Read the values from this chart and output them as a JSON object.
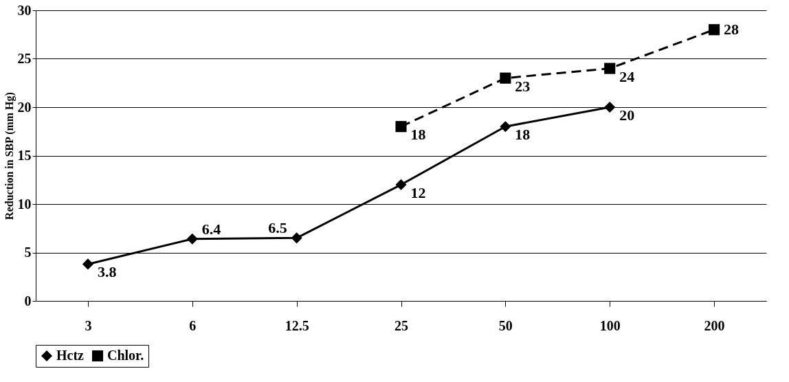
{
  "chart_data": {
    "type": "line",
    "ylabel": "Reduction in SBP (mm Hg)",
    "categories": [
      "3",
      "6",
      "12.5",
      "25",
      "50",
      "100",
      "200"
    ],
    "series": [
      {
        "name": "Hctz",
        "color": "#000000",
        "marker": "diamond",
        "line_style": "solid",
        "values": [
          3.8,
          6.4,
          6.5,
          12,
          18,
          20,
          null
        ]
      },
      {
        "name": "Chlor.",
        "color": "#000000",
        "marker": "square",
        "line_style": "dashed",
        "values": [
          null,
          null,
          null,
          18,
          23,
          24,
          28
        ]
      }
    ],
    "ylim": [
      0,
      30
    ],
    "yticks": [
      0,
      5,
      10,
      15,
      20,
      25,
      30
    ],
    "grid": "y",
    "legend": "bottom",
    "data_labels": true
  }
}
